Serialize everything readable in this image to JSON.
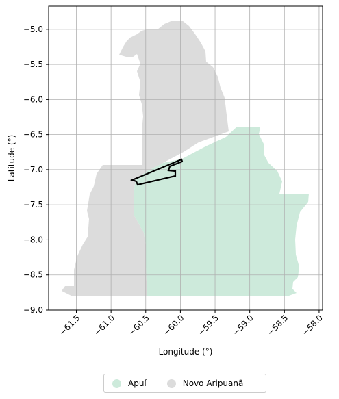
{
  "chart_data": {
    "type": "map",
    "xlabel": "Longitude (°)",
    "ylabel": "Latitude (°)",
    "xlim": [
      -61.9,
      -57.95
    ],
    "ylim": [
      -9.0,
      -4.67
    ],
    "x_ticks": [
      -61.5,
      -61.0,
      -60.5,
      -60.0,
      -59.5,
      -59.0,
      -58.5,
      -58.0
    ],
    "x_tick_labels": [
      "−61.5",
      "−61.0",
      "−60.5",
      "−60.0",
      "−59.5",
      "−59.0",
      "−58.5",
      "−58.0"
    ],
    "y_ticks": [
      -5.0,
      -5.5,
      -6.0,
      -6.5,
      -7.0,
      -7.5,
      -8.0,
      -8.5,
      -9.0
    ],
    "y_tick_labels": [
      "−5.0",
      "−5.5",
      "−6.0",
      "−6.5",
      "−7.0",
      "−7.5",
      "−8.0",
      "−8.5",
      "−9.0"
    ],
    "grid": true,
    "legend_position": "bottom-center",
    "regions": [
      {
        "name": "Apuí",
        "color": "#cdeadb"
      },
      {
        "name": "Novo Aripuanã",
        "color": "#dcdcdc"
      }
    ],
    "outline_color": "#000000"
  }
}
